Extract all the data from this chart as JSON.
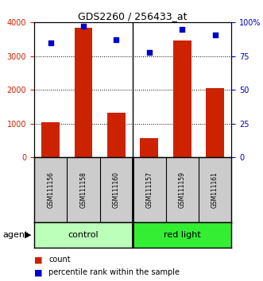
{
  "title": "GDS2260 / 256433_at",
  "samples": [
    "GSM111156",
    "GSM111158",
    "GSM111160",
    "GSM111157",
    "GSM111159",
    "GSM111161"
  ],
  "counts": [
    1050,
    3850,
    1320,
    570,
    3470,
    2060
  ],
  "percentiles": [
    85,
    97,
    87,
    78,
    95,
    91
  ],
  "group_labels": [
    "control",
    "red light"
  ],
  "group_color_light": "#bbffbb",
  "group_color_bright": "#33ee33",
  "bar_color": "#cc2200",
  "dot_color": "#0000cc",
  "ylim_left": [
    0,
    4000
  ],
  "ylim_right": [
    0,
    100
  ],
  "yticks_left": [
    0,
    1000,
    2000,
    3000,
    4000
  ],
  "yticks_right": [
    0,
    25,
    50,
    75,
    100
  ],
  "yticklabels_right": [
    "0",
    "25",
    "50",
    "75",
    "100%"
  ],
  "ylabel_left_color": "#cc2200",
  "ylabel_right_color": "#0000cc",
  "bg_color": "#ffffff",
  "bar_width": 0.55,
  "agent_label": "agent",
  "legend_count_label": "count",
  "legend_pct_label": "percentile rank within the sample",
  "sample_panel_color": "#cccccc",
  "tick_fontsize": 7,
  "sample_fontsize": 5.5,
  "group_fontsize": 8,
  "legend_fontsize": 7
}
